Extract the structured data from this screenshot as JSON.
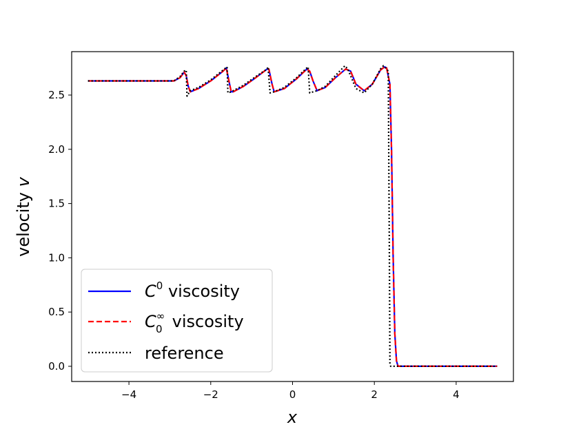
{
  "chart_data": {
    "type": "line",
    "xlabel": "x",
    "ylabel_prefix": "velocity ",
    "ylabel_var": "v",
    "xlim": [
      -5.4,
      5.4
    ],
    "ylim": [
      -0.14,
      2.9
    ],
    "xticks": [
      -4,
      -2,
      0,
      2,
      4
    ],
    "xtick_labels": [
      "−4",
      "−2",
      "0",
      "2",
      "4"
    ],
    "yticks": [
      0.0,
      0.5,
      1.0,
      1.5,
      2.0,
      2.5
    ],
    "ytick_labels": [
      "0.0",
      "0.5",
      "1.0",
      "1.5",
      "2.0",
      "2.5"
    ],
    "legend_position": "lower-left",
    "series": [
      {
        "name": "C0 viscosity",
        "name_main": "C",
        "name_sup": "0",
        "name_rest": " viscosity",
        "color": "#0000ff",
        "style": "solid",
        "x": [
          -5.0,
          -2.9,
          -2.75,
          -2.65,
          -2.6,
          -2.55,
          -2.5,
          -2.3,
          -2.0,
          -1.7,
          -1.62,
          -1.55,
          -1.5,
          -1.45,
          -1.2,
          -0.9,
          -0.62,
          -0.58,
          -0.5,
          -0.45,
          -0.2,
          0.1,
          0.35,
          0.42,
          0.5,
          0.6,
          0.8,
          1.05,
          1.3,
          1.42,
          1.55,
          1.75,
          1.95,
          2.15,
          2.25,
          2.3,
          2.38,
          2.42,
          2.46,
          2.5,
          2.54,
          2.58,
          5.0
        ],
        "y": [
          2.63,
          2.63,
          2.66,
          2.71,
          2.68,
          2.58,
          2.53,
          2.56,
          2.63,
          2.72,
          2.75,
          2.62,
          2.53,
          2.53,
          2.58,
          2.66,
          2.74,
          2.74,
          2.6,
          2.53,
          2.56,
          2.65,
          2.74,
          2.72,
          2.63,
          2.54,
          2.57,
          2.66,
          2.74,
          2.72,
          2.6,
          2.54,
          2.6,
          2.73,
          2.76,
          2.75,
          2.6,
          2.0,
          1.0,
          0.3,
          0.05,
          0.0,
          0.0
        ]
      },
      {
        "name": "C0∞ viscosity",
        "name_main": "C",
        "name_sup": "∞",
        "name_sub": "0",
        "name_rest": " viscosity",
        "color": "#ff0000",
        "style": "dashed",
        "x": [
          -5.0,
          -2.9,
          -2.75,
          -2.65,
          -2.6,
          -2.55,
          -2.5,
          -2.3,
          -2.0,
          -1.7,
          -1.62,
          -1.55,
          -1.5,
          -1.45,
          -1.2,
          -0.9,
          -0.62,
          -0.58,
          -0.5,
          -0.45,
          -0.2,
          0.1,
          0.35,
          0.42,
          0.5,
          0.6,
          0.8,
          1.05,
          1.3,
          1.42,
          1.55,
          1.75,
          1.95,
          2.15,
          2.25,
          2.3,
          2.38,
          2.42,
          2.46,
          2.5,
          2.54,
          2.58,
          5.0
        ],
        "y": [
          2.63,
          2.63,
          2.66,
          2.71,
          2.68,
          2.58,
          2.53,
          2.56,
          2.63,
          2.72,
          2.75,
          2.62,
          2.53,
          2.53,
          2.58,
          2.66,
          2.74,
          2.74,
          2.6,
          2.53,
          2.56,
          2.65,
          2.74,
          2.72,
          2.63,
          2.54,
          2.57,
          2.66,
          2.74,
          2.72,
          2.6,
          2.54,
          2.6,
          2.73,
          2.76,
          2.75,
          2.6,
          2.0,
          1.0,
          0.3,
          0.05,
          0.0,
          0.0
        ]
      },
      {
        "name": "reference",
        "color": "#000000",
        "style": "dotted",
        "x": [
          -5.0,
          -2.9,
          -2.75,
          -2.65,
          -2.6,
          -2.58,
          -2.5,
          -2.3,
          -2.0,
          -1.7,
          -1.6,
          -1.58,
          -1.5,
          -1.45,
          -1.2,
          -0.9,
          -0.62,
          -0.6,
          -0.55,
          -0.45,
          -0.2,
          0.1,
          0.35,
          0.38,
          0.42,
          0.6,
          0.8,
          1.05,
          1.28,
          1.35,
          1.55,
          1.75,
          1.95,
          2.15,
          2.22,
          2.3,
          2.34,
          2.37,
          2.38,
          2.4,
          5.0
        ],
        "y": [
          2.63,
          2.63,
          2.67,
          2.72,
          2.73,
          2.49,
          2.54,
          2.57,
          2.64,
          2.73,
          2.76,
          2.52,
          2.53,
          2.54,
          2.59,
          2.67,
          2.74,
          2.76,
          2.52,
          2.53,
          2.57,
          2.66,
          2.75,
          2.76,
          2.52,
          2.54,
          2.58,
          2.68,
          2.77,
          2.74,
          2.56,
          2.52,
          2.6,
          2.74,
          2.77,
          2.74,
          2.72,
          0.8,
          0.02,
          0.0,
          0.0
        ]
      }
    ]
  }
}
